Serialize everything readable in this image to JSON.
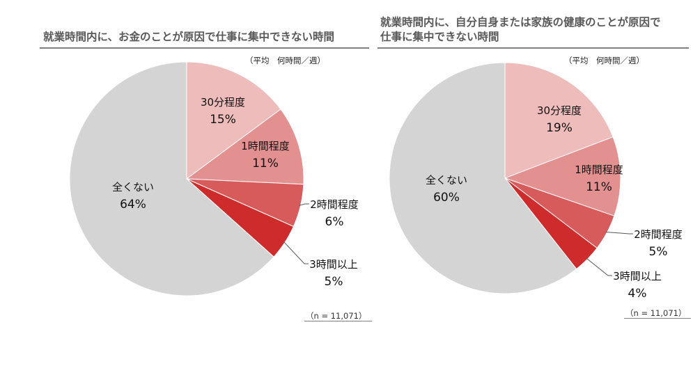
{
  "chart_data": [
    {
      "type": "pie",
      "title": "就業時間内に、お金のことが原因で仕事に集中できない時間",
      "unit_note": "（平均　何時間／週）",
      "n_note": "（n = 11,071）",
      "slices": [
        {
          "label": "30分程度",
          "value": 15,
          "display": "15%",
          "color": "#efbcbc"
        },
        {
          "label": "1時間程度",
          "value": 11,
          "display": "11%",
          "color": "#e39090"
        },
        {
          "label": "2時間程度",
          "value": 6,
          "display": "6%",
          "color": "#d75b5b"
        },
        {
          "label": "3時間以上",
          "value": 5,
          "display": "5%",
          "color": "#ce2c2c"
        },
        {
          "label": "全くない",
          "value": 64,
          "display": "64%",
          "color": "#d4d4d4"
        }
      ]
    },
    {
      "type": "pie",
      "title": "就業時間内に、自分自身または家族の健康のことが原因で仕事に集中できない時間",
      "title_lines": [
        "就業時間内に、自分自身または家族の健康のことが原因で",
        "仕事に集中できない時間"
      ],
      "unit_note": "（平均　何時間／週）",
      "n_note": "（n = 11,071）",
      "slices": [
        {
          "label": "30分程度",
          "value": 19,
          "display": "19%",
          "color": "#efbcbc"
        },
        {
          "label": "1時間程度",
          "value": 11,
          "display": "11%",
          "color": "#e39090"
        },
        {
          "label": "2時間程度",
          "value": 5,
          "display": "5%",
          "color": "#d75b5b"
        },
        {
          "label": "3時間以上",
          "value": 4,
          "display": "4%",
          "color": "#ce2c2c"
        },
        {
          "label": "全くない",
          "value": 60,
          "display": "60%",
          "color": "#d4d4d4"
        }
      ]
    }
  ]
}
